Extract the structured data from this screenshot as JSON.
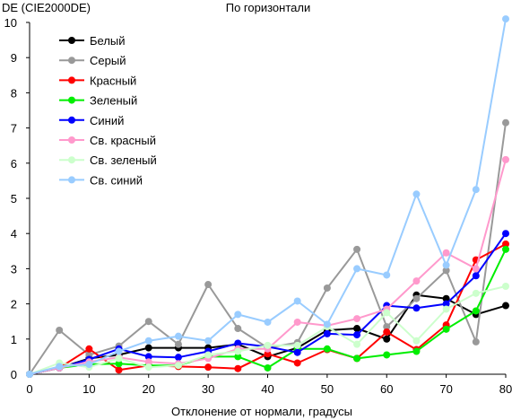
{
  "chart_data": {
    "type": "line",
    "title": "По горизонтали",
    "ylabel": "DE (CIE2000DE)",
    "xlabel": "Отклонение от нормали, градусы",
    "x": [
      0,
      5,
      10,
      15,
      20,
      25,
      30,
      35,
      40,
      45,
      50,
      55,
      60,
      65,
      70,
      75,
      80
    ],
    "xlim": [
      0,
      80
    ],
    "ylim": [
      0,
      10
    ],
    "xticks": [
      0,
      10,
      20,
      30,
      40,
      50,
      60,
      70,
      80
    ],
    "yticks": [
      0,
      1,
      2,
      3,
      4,
      5,
      6,
      7,
      8,
      9,
      10
    ],
    "grid": false,
    "legend_position": "top-left",
    "series": [
      {
        "name": "Белый",
        "color": "#000000",
        "values": [
          0,
          0.18,
          0.45,
          0.55,
          0.75,
          0.75,
          0.75,
          0.85,
          0.5,
          0.75,
          1.25,
          1.3,
          1.0,
          2.25,
          2.15,
          1.7,
          1.95
        ]
      },
      {
        "name": "Серый",
        "color": "#999999",
        "values": [
          0,
          1.25,
          0.55,
          0.8,
          1.5,
          0.85,
          2.55,
          1.3,
          0.75,
          0.9,
          2.45,
          3.55,
          1.35,
          2.15,
          2.95,
          0.92,
          7.15
        ]
      },
      {
        "name": "Красный",
        "color": "#ff0000",
        "values": [
          0,
          0.18,
          0.72,
          0.12,
          0.25,
          0.22,
          0.2,
          0.16,
          0.58,
          0.32,
          0.7,
          0.45,
          1.2,
          0.7,
          1.4,
          3.25,
          3.7
        ]
      },
      {
        "name": "Зеленый",
        "color": "#00ee00",
        "values": [
          0,
          0.18,
          0.28,
          0.3,
          0.25,
          0.25,
          0.5,
          0.5,
          0.18,
          0.72,
          0.72,
          0.45,
          0.55,
          0.65,
          1.28,
          1.8,
          3.55
        ]
      },
      {
        "name": "Синий",
        "color": "#0000ff",
        "values": [
          0,
          0.18,
          0.42,
          0.72,
          0.5,
          0.48,
          0.65,
          0.88,
          0.78,
          0.62,
          1.15,
          1.12,
          1.95,
          1.88,
          2.0,
          2.8,
          4.0
        ]
      },
      {
        "name": "Св. красный",
        "color": "#ff99cc",
        "values": [
          0,
          0.18,
          0.35,
          0.48,
          0.35,
          0.3,
          0.45,
          0.72,
          0.72,
          1.48,
          1.38,
          1.58,
          1.85,
          2.65,
          3.45,
          3.0,
          6.1
        ]
      },
      {
        "name": "Св. зеленый",
        "color": "#ccffcc",
        "values": [
          0,
          0.32,
          0.2,
          0.45,
          0.2,
          0.25,
          0.55,
          0.65,
          0.82,
          0.82,
          1.35,
          0.85,
          1.75,
          0.95,
          1.85,
          2.3,
          2.5
        ]
      },
      {
        "name": "Св. синий",
        "color": "#99ccff",
        "values": [
          0,
          0.22,
          0.28,
          0.65,
          0.95,
          1.08,
          0.95,
          1.7,
          1.48,
          2.08,
          1.42,
          3.0,
          2.82,
          5.12,
          3.1,
          5.25,
          10.1
        ]
      }
    ]
  }
}
